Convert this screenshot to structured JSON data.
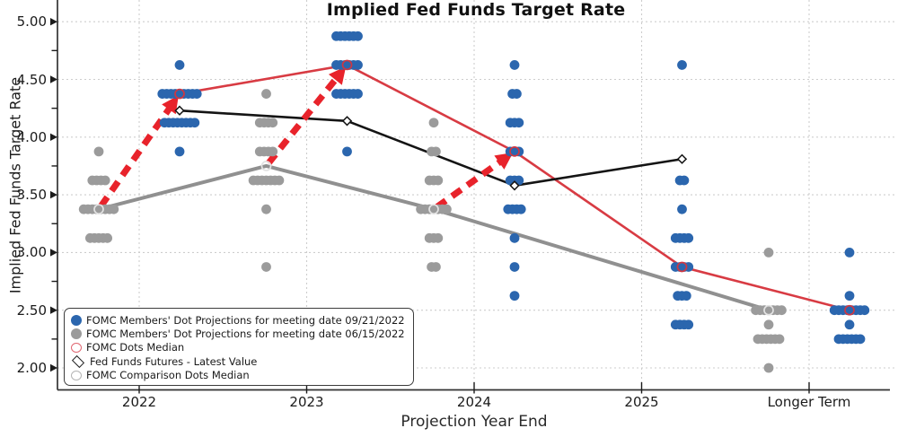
{
  "chart": {
    "title": "Implied Fed Funds Target Rate",
    "x_axis": {
      "label": "Projection Year End",
      "categories": [
        "2022",
        "2023",
        "2024",
        "2025",
        "Longer Term"
      ]
    },
    "y_axis": {
      "label": "Implied Fed Funds Target Rate",
      "ticks": [
        "5.00",
        "4.50",
        "4.00",
        "3.50",
        "3.00",
        "2.50",
        "2.00"
      ]
    }
  },
  "legend": {
    "items": [
      {
        "icon": "blue-dot-icon",
        "marker": "filled-circle",
        "color": "#2b66ae",
        "label": "FOMC Members' Dot Projections for meeting date 09/21/2022"
      },
      {
        "icon": "gray-dot-icon",
        "marker": "filled-circle",
        "color": "#9b9b9b",
        "label": "FOMC Members' Dot Projections for meeting date 06/15/2022"
      },
      {
        "icon": "red-ring-icon",
        "marker": "open-circle",
        "color": "#e06671",
        "label": "FOMC Dots Median"
      },
      {
        "icon": "black-diamond-icon",
        "marker": "open-diamond",
        "color": "#222222",
        "label": "Fed Funds Futures - Latest Value"
      },
      {
        "icon": "gray-ring-icon",
        "marker": "open-circle",
        "color": "#b4b4b4",
        "label": "FOMC Comparison Dots Median"
      }
    ]
  },
  "chart_data": {
    "type": "scatter",
    "title": "Implied Fed Funds Target Rate",
    "xlabel": "Projection Year End",
    "ylabel": "Implied Fed Funds Target Rate",
    "categories": [
      "2022",
      "2023",
      "2024",
      "2025",
      "Longer Term"
    ],
    "ylim": [
      1.8,
      5.15
    ],
    "y_major_ticks": [
      2.0,
      2.5,
      3.0,
      3.5,
      4.0,
      4.5,
      5.0
    ],
    "y_minor_ticks": [
      2.25,
      2.75,
      3.25,
      3.75,
      4.25,
      4.75
    ],
    "grid": true,
    "legend_position": "lower-left",
    "colors": {
      "blue": "#2b66ae",
      "gray": "#9b9b9b",
      "gray_line": "#909090",
      "red_line": "#d83b43",
      "arrow_red": "#e8232b",
      "red_ring": "#cf3741",
      "white_ring": "#e2e2e2",
      "black": "#141414",
      "grid": "#cdcdcd",
      "spine": "#333333"
    },
    "series": [
      {
        "name": "FOMC Members' Dot Projections for meeting date 09/21/2022",
        "kind": "dots",
        "side": "right",
        "color": "#2b66ae",
        "dots": {
          "2022": [
            [
              4.625,
              1
            ],
            [
              4.375,
              9
            ],
            [
              4.125,
              8
            ],
            [
              3.875,
              1
            ]
          ],
          "2023": [
            [
              4.875,
              6
            ],
            [
              4.625,
              6
            ],
            [
              4.375,
              6
            ],
            [
              3.875,
              1
            ]
          ],
          "2024": [
            [
              4.625,
              1
            ],
            [
              4.375,
              2
            ],
            [
              4.125,
              3
            ],
            [
              3.875,
              3
            ],
            [
              3.625,
              3
            ],
            [
              3.375,
              4
            ],
            [
              3.125,
              1
            ],
            [
              2.875,
              1
            ],
            [
              2.625,
              1
            ]
          ],
          "2025": [
            [
              4.625,
              1
            ],
            [
              3.625,
              2
            ],
            [
              3.375,
              1
            ],
            [
              3.125,
              4
            ],
            [
              2.875,
              4
            ],
            [
              2.625,
              3
            ],
            [
              2.375,
              4
            ]
          ],
          "Longer Term": [
            [
              3.0,
              1
            ],
            [
              2.625,
              1
            ],
            [
              2.5,
              8
            ],
            [
              2.375,
              1
            ],
            [
              2.25,
              6
            ]
          ]
        }
      },
      {
        "name": "FOMC Members' Dot Projections for meeting date 06/15/2022",
        "kind": "dots",
        "side": "left",
        "color": "#9b9b9b",
        "dots": {
          "2022": [
            [
              3.875,
              1
            ],
            [
              3.625,
              4
            ],
            [
              3.375,
              8
            ],
            [
              3.125,
              5
            ]
          ],
          "2023": [
            [
              4.375,
              1
            ],
            [
              4.125,
              4
            ],
            [
              3.875,
              4
            ],
            [
              3.625,
              7
            ],
            [
              3.375,
              1
            ],
            [
              2.875,
              1
            ]
          ],
          "2024": [
            [
              4.125,
              1
            ],
            [
              3.875,
              2
            ],
            [
              3.625,
              3
            ],
            [
              3.375,
              7
            ],
            [
              3.125,
              3
            ],
            [
              2.875,
              2
            ]
          ],
          "2025": [],
          "Longer Term": [
            [
              3.0,
              1
            ],
            [
              2.5,
              7
            ],
            [
              2.375,
              1
            ],
            [
              2.25,
              6
            ],
            [
              2.0,
              1
            ]
          ]
        }
      },
      {
        "name": "FOMC Dots Median",
        "kind": "line",
        "side": "right",
        "color": "#d83b43",
        "width": 2.6,
        "marker": "open-circle",
        "marker_color": "#cf3741",
        "points": {
          "2022": 4.375,
          "2023": 4.625,
          "2024": 3.875,
          "2025": 2.875,
          "Longer Term": 2.5
        }
      },
      {
        "name": "FOMC Comparison Dots Median",
        "kind": "line",
        "side": "left",
        "color": "#909090",
        "width": 4,
        "marker": "open-circle",
        "marker_color": "#e2e2e2",
        "points": {
          "2022": 3.375,
          "2023": 3.75,
          "2024": 3.375,
          "Longer Term": 2.5
        }
      },
      {
        "name": "Fed Funds Futures - Latest Value",
        "kind": "line",
        "side": "right",
        "color": "#141414",
        "width": 2.6,
        "marker": "open-diamond",
        "marker_color": "#141414",
        "points": {
          "2022": 4.23,
          "2023": 4.14,
          "2024": 3.58,
          "2025": 3.81
        }
      }
    ],
    "arrows": [
      {
        "category": "2022",
        "from_value": 3.375,
        "to_value": 4.375
      },
      {
        "category": "2023",
        "from_value": 3.75,
        "to_value": 4.625
      },
      {
        "category": "2024",
        "from_value": 3.375,
        "to_value": 3.875
      }
    ]
  }
}
